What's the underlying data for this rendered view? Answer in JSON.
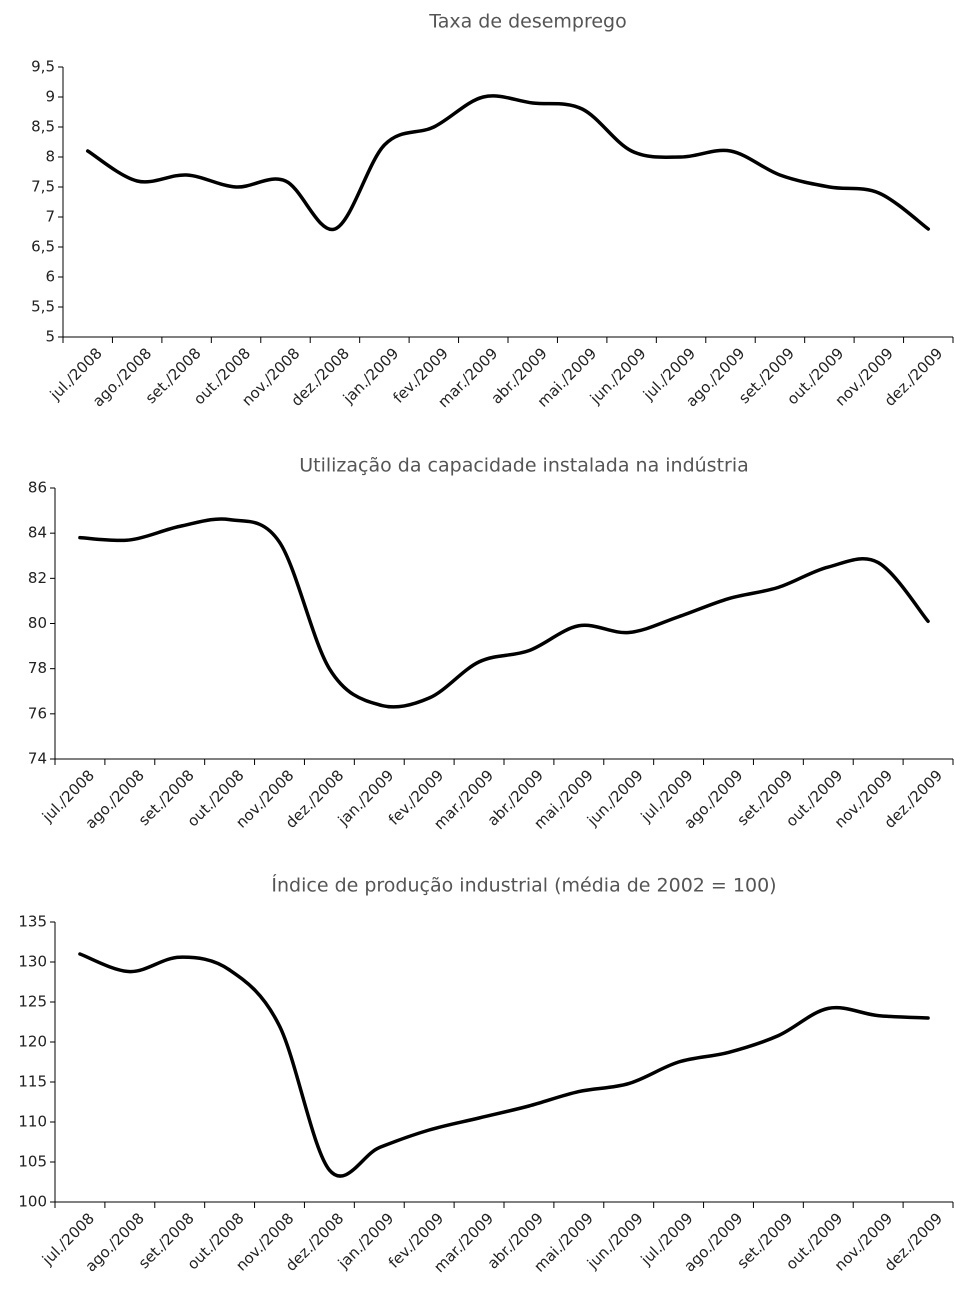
{
  "chart_data": [
    {
      "type": "line",
      "title": "Taxa de desemprego",
      "categories": [
        "jul./2008",
        "ago./2008",
        "set./2008",
        "out./2008",
        "nov./2008",
        "dez./2008",
        "jan./2009",
        "fev./2009",
        "mar./2009",
        "abr./2009",
        "mai./2009",
        "jun./2009",
        "jul./2009",
        "ago./2009",
        "set./2009",
        "out./2009",
        "nov./2009",
        "dez./2009"
      ],
      "series": [
        {
          "color": "#000000",
          "values": [
            8.1,
            7.6,
            7.7,
            7.5,
            7.6,
            6.8,
            8.2,
            8.5,
            9.0,
            8.9,
            8.8,
            8.1,
            8.0,
            8.1,
            7.7,
            7.5,
            7.4,
            6.8
          ]
        }
      ],
      "ylim": [
        5,
        9.5
      ],
      "yticks": [
        5,
        {
          "value": 5.5,
          "label": "5,5"
        },
        6,
        {
          "value": 6.5,
          "label": "6,5"
        },
        7,
        {
          "value": 7.5,
          "label": "7,5"
        },
        8,
        {
          "value": 8.5,
          "label": "8,5"
        },
        9,
        {
          "value": 9.5,
          "label": "9,5"
        }
      ],
      "grid": false
    },
    {
      "type": "line",
      "title": "Utilização da capacidade instalada na indústria",
      "categories": [
        "jul./2008",
        "ago./2008",
        "set./2008",
        "out./2008",
        "nov./2008",
        "dez./2008",
        "jan./2009",
        "fev./2009",
        "mar./2009",
        "abr./2009",
        "mai./2009",
        "jun./2009",
        "jul./2009",
        "ago./2009",
        "set./2009",
        "out./2009",
        "nov./2009",
        "dez./2009"
      ],
      "series": [
        {
          "color": "#000000",
          "values": [
            83.8,
            83.7,
            84.3,
            84.6,
            83.6,
            78.0,
            76.4,
            76.7,
            78.3,
            78.8,
            79.9,
            79.6,
            80.3,
            81.1,
            81.6,
            82.5,
            82.7,
            80.1
          ]
        }
      ],
      "ylim": [
        74,
        86
      ],
      "yticks": [
        74,
        76,
        78,
        80,
        82,
        84,
        86
      ],
      "grid": false
    },
    {
      "type": "line",
      "title": "Índice de produção industrial (média de 2002 = 100)",
      "categories": [
        "jul./2008",
        "ago./2008",
        "set./2008",
        "out./2008",
        "nov./2008",
        "dez./2008",
        "jan./2009",
        "fev./2009",
        "mar./2009",
        "abr./2009",
        "mai./2009",
        "jun./2009",
        "jul./2009",
        "ago./2009",
        "set./2009",
        "out./2009",
        "nov./2009",
        "dez./2009"
      ],
      "series": [
        {
          "color": "#000000",
          "values": [
            131,
            128.8,
            130.6,
            129,
            122,
            104,
            106.8,
            109,
            110.5,
            112,
            113.8,
            114.8,
            117.5,
            118.7,
            120.8,
            124.2,
            123.3,
            123
          ]
        }
      ],
      "ylim": [
        100,
        135
      ],
      "yticks": [
        100,
        105,
        110,
        115,
        120,
        125,
        130,
        135
      ],
      "grid": false
    }
  ]
}
